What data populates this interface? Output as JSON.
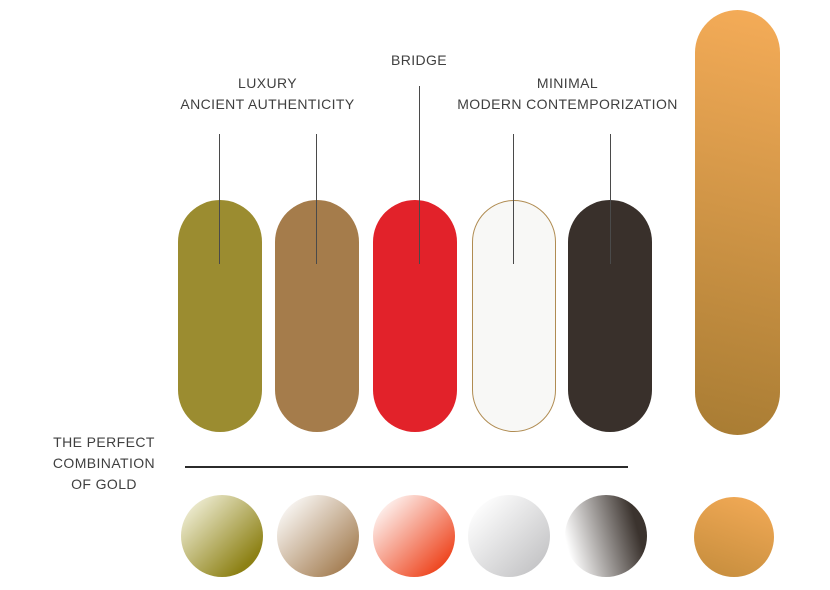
{
  "labels": {
    "luxury": {
      "line1": "LUXURY",
      "line2": "ANCIENT AUTHENTICITY"
    },
    "bridge": {
      "line1": "BRIDGE"
    },
    "minimal": {
      "line1": "MINIMAL",
      "line2": "MODERN CONTEMPORIZATION"
    },
    "perfect_gold": {
      "line1": "THE PERFECT",
      "line2": "COMBINATION",
      "line3": "OF GOLD"
    }
  },
  "colors": {
    "background": "#ffffff",
    "text": "#3f3f3f",
    "connector_line": "#4a4a4a",
    "divider_line": "#2b2b2b"
  },
  "pills": [
    {
      "name": "olive-gold",
      "bg": "#9b8c30"
    },
    {
      "name": "antique-brown",
      "bg": "#a57c4b"
    },
    {
      "name": "bridge-red",
      "bg": "#e2222a"
    },
    {
      "name": "minimal-white",
      "bg": "#f8f8f6",
      "border": "#b08c52"
    },
    {
      "name": "dark-charcoal",
      "bg": "#39302b"
    }
  ],
  "gold_pill": {
    "name": "gold-gradient-pill",
    "bg": "linear-gradient(193deg, #f5ac58 0%, #a87c33 100%)"
  },
  "gradient_circles": [
    {
      "name": "olive-gradient",
      "bg": "linear-gradient(135deg, #fdfdf0 0%, #8d8115 82%)"
    },
    {
      "name": "brown-gradient",
      "bg": "linear-gradient(135deg, #ffffff 6%, #a37c50 88%)"
    },
    {
      "name": "red-gradient",
      "bg": "linear-gradient(135deg, #ffffff 6%, #ee4721 85%)"
    },
    {
      "name": "silver-gradient",
      "bg": "linear-gradient(135deg, #ffffff 10%, #bfbfc1 95%)"
    },
    {
      "name": "charcoal-gradient",
      "bg": "linear-gradient(75deg, #ffffff 10%, #3b332e 82%)"
    }
  ],
  "gold_circle": {
    "name": "gold-dot",
    "bg": "linear-gradient(200deg, #f4ab57 0%, #c48c3c 100%)"
  }
}
